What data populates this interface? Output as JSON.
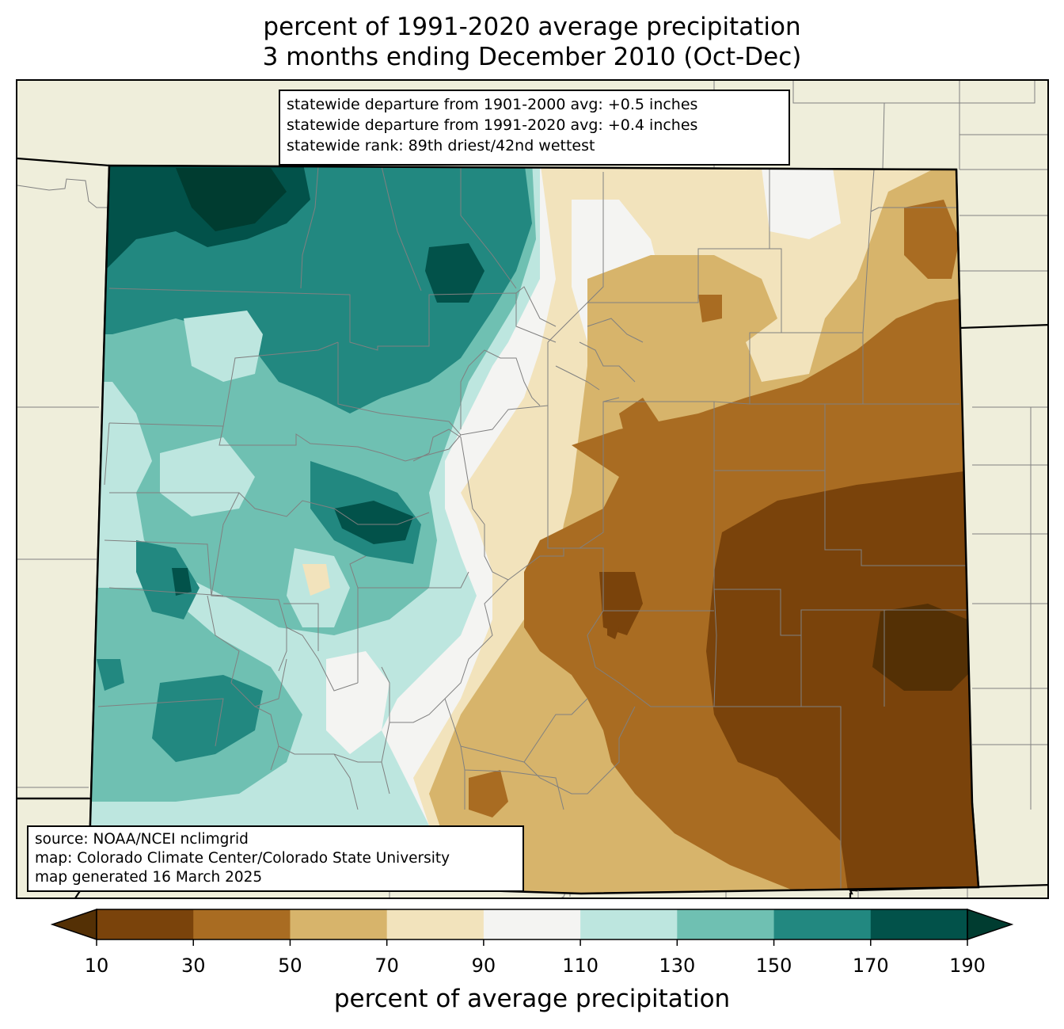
{
  "title": {
    "line1": "percent of 1991-2020 average precipitation",
    "line2": "3 months ending December 2010 (Oct-Dec)"
  },
  "stats_box": {
    "line1": "statewide departure from 1901-2000 avg: +0.5 inches",
    "line2": "statewide departure from 1991-2020 avg: +0.4 inches",
    "line3": "statewide rank: 89th driest/42nd wettest"
  },
  "source_box": {
    "line1": "source: NOAA/NCEI nclimgrid",
    "line2": "map: Colorado Climate Center/Colorado State University",
    "line3": "map generated 16 March 2025"
  },
  "colorbar": {
    "label": "percent of average precipitation",
    "ticks": [
      "10",
      "30",
      "50",
      "70",
      "90",
      "110",
      "130",
      "150",
      "170",
      "190"
    ],
    "bins": [
      {
        "range": "<10",
        "color": "#543005"
      },
      {
        "range": "10-30",
        "color": "#7a430b"
      },
      {
        "range": "30-50",
        "color": "#a96c22"
      },
      {
        "range": "50-70",
        "color": "#d7b46b"
      },
      {
        "range": "70-90",
        "color": "#f2e3bc"
      },
      {
        "range": "90-110",
        "color": "#f4f4f2"
      },
      {
        "range": "110-130",
        "color": "#bde6df"
      },
      {
        "range": "130-150",
        "color": "#6fc0b2"
      },
      {
        "range": "150-170",
        "color": "#228880"
      },
      {
        "range": "170-190",
        "color": "#02524a"
      },
      {
        "range": ">190",
        "color": "#003c30"
      }
    ]
  },
  "colors": {
    "map_background": "#efeedb",
    "county_lines": "#808080",
    "state_lines": "#000000"
  }
}
